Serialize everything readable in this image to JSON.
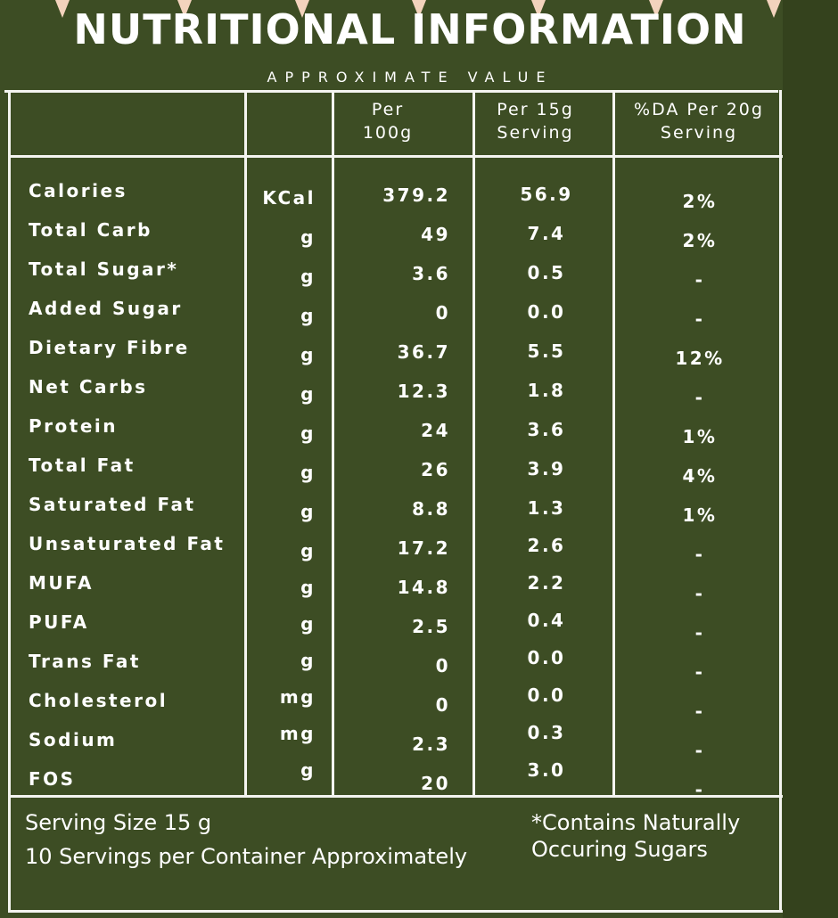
{
  "header": {
    "title": "NUTRITIONAL INFORMATION",
    "subtitle": "APPROXIMATE VALUE"
  },
  "table": {
    "columns": [
      "Per 100g",
      "Per 15g Serving",
      "%DA Per 20g Serving"
    ],
    "rows": [
      [
        "Calories",
        "KCal",
        "379.2",
        "56.9",
        "2%"
      ],
      [
        "Total Carb",
        "g",
        "49",
        "7.4",
        "2%"
      ],
      [
        "Total Sugar*",
        "g",
        "3.6",
        "0.5",
        "-"
      ],
      [
        "Added Sugar",
        "g",
        "0",
        "0.0",
        "-"
      ],
      [
        "Dietary Fibre",
        "g",
        "36.7",
        "5.5",
        "12%"
      ],
      [
        "Net Carbs",
        "g",
        "12.3",
        "1.8",
        "-"
      ],
      [
        "Protein",
        "g",
        "24",
        "3.6",
        "1%"
      ],
      [
        "Total Fat",
        "g",
        "26",
        "3.9",
        "4%"
      ],
      [
        "Saturated Fat",
        "g",
        "8.8",
        "1.3",
        "1%"
      ],
      [
        "Unsaturated Fat",
        "g",
        "17.2",
        "2.6",
        "-"
      ],
      [
        "MUFA",
        "g",
        "14.8",
        "2.2",
        "-"
      ],
      [
        "PUFA",
        "g",
        "2.5",
        "0.4",
        "-"
      ],
      [
        "Trans Fat",
        "g",
        "0",
        "0.0",
        "-"
      ],
      [
        "Cholesterol",
        "mg",
        "0",
        "0.0",
        "-"
      ],
      [
        "Sodium",
        "mg",
        "2.3",
        "0.3",
        "-"
      ],
      [
        "FOS",
        "g",
        "20",
        "3.0",
        "-"
      ]
    ]
  },
  "footer": {
    "serving_size": "Serving Size 15 g",
    "servings": "10 Servings per Container Approximately",
    "note": "*Contains Naturally Occuring Sugars"
  }
}
